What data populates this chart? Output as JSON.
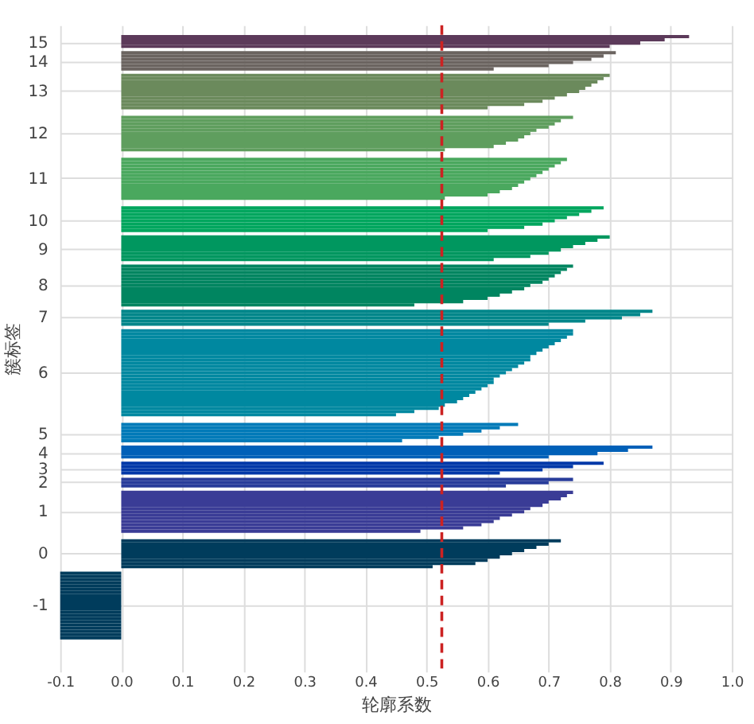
{
  "chart_data": {
    "type": "bar",
    "orientation": "horizontal",
    "xlabel": "轮廓系数",
    "ylabel": "簇标签",
    "grid": true,
    "xlim": [
      -0.1,
      1.0
    ],
    "xticks": [
      {
        "value": -0.1,
        "label": "-0.1"
      },
      {
        "value": 0,
        "label": "0.0"
      },
      {
        "value": 0.1,
        "label": "0.1"
      },
      {
        "value": 0.2,
        "label": "0.2"
      },
      {
        "value": 0.3,
        "label": "0.3"
      },
      {
        "value": 0.4,
        "label": "0.4"
      },
      {
        "value": 0.5,
        "label": "0.5"
      },
      {
        "value": 0.6,
        "label": "0.6"
      },
      {
        "value": 0.7,
        "label": "0.7"
      },
      {
        "value": 0.8,
        "label": "0.8"
      },
      {
        "value": 0.9,
        "label": "0.9"
      },
      {
        "value": 1.0,
        "label": "1.0"
      }
    ],
    "ref_lines": [
      {
        "axis": "x",
        "value": 0.525,
        "color": "#cc2222",
        "line_style": "dashed"
      }
    ],
    "categories": [
      null,
      null,
      null,
      null,
      null,
      "15",
      null,
      null,
      null,
      null,
      null,
      "14",
      null,
      null,
      null,
      null,
      null,
      null,
      null,
      null,
      "13",
      null,
      null,
      null,
      null,
      null,
      null,
      null,
      null,
      null,
      null,
      null,
      null,
      "12",
      null,
      null,
      null,
      null,
      null,
      null,
      null,
      null,
      null,
      null,
      null,
      null,
      null,
      "11",
      null,
      null,
      null,
      null,
      null,
      null,
      null,
      null,
      null,
      null,
      null,
      null,
      "10",
      null,
      null,
      null,
      null,
      null,
      null,
      null,
      null,
      "9",
      null,
      null,
      null,
      null,
      null,
      null,
      null,
      null,
      null,
      null,
      "8",
      null,
      null,
      null,
      null,
      null,
      null,
      null,
      null,
      null,
      "7",
      null,
      null,
      null,
      null,
      null,
      null,
      null,
      null,
      null,
      null,
      null,
      null,
      null,
      null,
      null,
      null,
      "6",
      null,
      null,
      null,
      null,
      null,
      null,
      null,
      null,
      null,
      null,
      null,
      null,
      null,
      null,
      null,
      null,
      null,
      null,
      "5",
      null,
      null,
      null,
      null,
      null,
      "4",
      null,
      null,
      null,
      null,
      "3",
      null,
      null,
      null,
      "2",
      null,
      null,
      null,
      null,
      null,
      null,
      null,
      null,
      "1",
      null,
      null,
      null,
      null,
      null,
      null,
      null,
      null,
      null,
      null,
      null,
      null,
      "0",
      null,
      null,
      null,
      null,
      null,
      null,
      null,
      null,
      null,
      null,
      null,
      null,
      null,
      null,
      null,
      "-1",
      null,
      null,
      null,
      null,
      null,
      null,
      null,
      null,
      null,
      null,
      null,
      null,
      null,
      null,
      null,
      null,
      null,
      null,
      null,
      null
    ],
    "values": [
      null,
      null,
      null,
      0.93,
      0.89,
      0.85,
      0.8,
      null,
      0.81,
      0.79,
      0.77,
      0.74,
      0.7,
      0.61,
      null,
      0.8,
      0.79,
      0.78,
      0.77,
      0.76,
      0.75,
      0.73,
      0.71,
      0.69,
      0.66,
      0.6,
      null,
      null,
      0.74,
      0.72,
      0.71,
      0.7,
      0.68,
      0.67,
      0.66,
      0.65,
      0.63,
      0.61,
      0.53,
      null,
      null,
      0.73,
      0.72,
      0.71,
      0.7,
      0.69,
      0.68,
      0.67,
      0.66,
      0.65,
      0.64,
      0.62,
      0.6,
      0.53,
      null,
      null,
      0.79,
      0.77,
      0.75,
      0.73,
      0.71,
      0.69,
      0.66,
      0.6,
      null,
      0.8,
      0.78,
      0.76,
      0.74,
      0.72,
      0.7,
      0.67,
      0.61,
      null,
      0.74,
      0.73,
      0.72,
      0.71,
      0.7,
      0.69,
      0.67,
      0.66,
      0.64,
      0.62,
      0.6,
      0.56,
      0.48,
      null,
      0.87,
      0.85,
      0.82,
      0.76,
      0.7,
      null,
      0.74,
      0.74,
      0.73,
      0.72,
      0.71,
      0.7,
      0.69,
      0.68,
      0.67,
      0.67,
      0.66,
      0.65,
      0.64,
      0.63,
      0.62,
      0.61,
      0.61,
      0.6,
      0.59,
      0.58,
      0.57,
      0.56,
      0.55,
      0.53,
      0.52,
      0.48,
      0.45,
      null,
      null,
      0.65,
      0.62,
      0.59,
      0.56,
      0.52,
      0.46,
      null,
      0.87,
      0.83,
      0.78,
      0.7,
      null,
      0.79,
      0.74,
      0.69,
      0.62,
      null,
      0.74,
      0.7,
      0.63,
      null,
      0.74,
      0.73,
      0.72,
      0.7,
      0.69,
      0.67,
      0.66,
      0.64,
      0.62,
      0.61,
      0.59,
      0.56,
      0.49,
      null,
      null,
      0.72,
      0.7,
      0.68,
      0.66,
      0.64,
      0.62,
      0.6,
      0.58,
      0.51,
      null,
      -0.1,
      -0.1,
      -0.1,
      -0.1,
      -0.1,
      -0.1,
      -0.1,
      -0.1,
      -0.1,
      -0.1,
      -0.1,
      -0.1,
      -0.1,
      -0.1,
      -0.1,
      -0.1,
      -0.1,
      -0.1,
      -0.1,
      -0.1,
      -0.1,
      null,
      null,
      null,
      null,
      null,
      null,
      null,
      null,
      null,
      null
    ],
    "colors": [
      null,
      null,
      null,
      "#5c3a5a",
      "#5c3a5a",
      "#5c3a5a",
      "#5c3a5a",
      null,
      "#6b6460",
      "#6b6460",
      "#6b6460",
      "#6b6460",
      "#6b6460",
      "#6b6460",
      null,
      "#6b8a5c",
      "#6b8a5c",
      "#6b8a5c",
      "#6b8a5c",
      "#6b8a5c",
      "#6b8a5c",
      "#6b8a5c",
      "#6b8a5c",
      "#6b8a5c",
      "#6b8a5c",
      "#6b8a5c",
      null,
      null,
      "#5f9e5e",
      "#5f9e5e",
      "#5f9e5e",
      "#5f9e5e",
      "#5f9e5e",
      "#5f9e5e",
      "#5f9e5e",
      "#5f9e5e",
      "#5f9e5e",
      "#5f9e5e",
      "#5f9e5e",
      null,
      null,
      "#4aa85e",
      "#4aa85e",
      "#4aa85e",
      "#4aa85e",
      "#4aa85e",
      "#4aa85e",
      "#4aa85e",
      "#4aa85e",
      "#4aa85e",
      "#4aa85e",
      "#4aa85e",
      "#4aa85e",
      "#4aa85e",
      null,
      null,
      "#00a65e",
      "#00a65e",
      "#00a65e",
      "#00a65e",
      "#00a65e",
      "#00a65e",
      "#00a65e",
      "#00a65e",
      null,
      "#00975f",
      "#00975f",
      "#00975f",
      "#00975f",
      "#00975f",
      "#00975f",
      "#00975f",
      "#00975f",
      null,
      "#008560",
      "#008560",
      "#008560",
      "#008560",
      "#008560",
      "#008560",
      "#008560",
      "#008560",
      "#008560",
      "#008560",
      "#008560",
      "#008560",
      "#008560",
      null,
      "#00868a",
      "#00868a",
      "#00868a",
      "#00868a",
      "#00868a",
      null,
      "#0088a0",
      "#0088a0",
      "#0088a0",
      "#0088a0",
      "#0088a0",
      "#0088a0",
      "#0088a0",
      "#0088a0",
      "#0088a0",
      "#0088a0",
      "#0088a0",
      "#0088a0",
      "#0088a0",
      "#0088a0",
      "#0088a0",
      "#0088a0",
      "#0088a0",
      "#0088a0",
      "#0088a0",
      "#0088a0",
      "#0088a0",
      "#0088a0",
      "#0088a0",
      "#0088a0",
      "#0088a0",
      "#0088a0",
      "#0088a0",
      null,
      null,
      "#007ab8",
      "#007ab8",
      "#007ab8",
      "#007ab8",
      "#007ab8",
      "#007ab8",
      null,
      "#0060b8",
      "#0060b8",
      "#0060b8",
      "#0060b8",
      null,
      "#0038a8",
      "#0038a8",
      "#0038a8",
      "#0038a8",
      null,
      "#283c9a",
      "#283c9a",
      "#283c9a",
      null,
      "#3a3c96",
      "#3a3c96",
      "#3a3c96",
      "#3a3c96",
      "#3a3c96",
      "#3a3c96",
      "#3a3c96",
      "#3a3c96",
      "#3a3c96",
      "#3a3c96",
      "#3a3c96",
      "#3a3c96",
      "#3a3c96",
      null,
      null,
      "#003c5c",
      "#003c5c",
      "#003c5c",
      "#003c5c",
      "#003c5c",
      "#003c5c",
      "#003c5c",
      "#003c5c",
      "#003c5c",
      null,
      "#003c5c",
      "#003c5c",
      "#003c5c",
      "#003c5c",
      "#003c5c",
      "#003c5c",
      "#003c5c",
      "#003c5c",
      "#003c5c",
      "#003c5c",
      "#003c5c",
      "#003c5c",
      "#003c5c",
      "#003c5c",
      "#003c5c",
      "#003c5c",
      "#003c5c",
      "#003c5c",
      "#003c5c",
      "#003c5c",
      "#003c5c",
      null,
      null,
      null,
      null,
      null,
      null,
      null,
      null,
      null,
      null
    ]
  }
}
